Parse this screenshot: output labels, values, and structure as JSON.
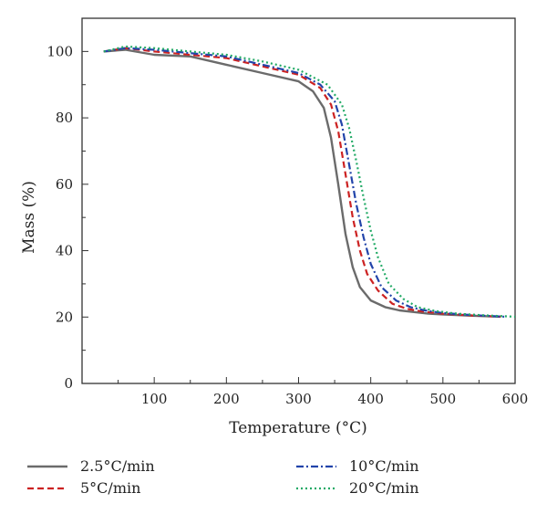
{
  "chart_data": {
    "type": "line",
    "title": "",
    "xlabel": "Temperature (°C)",
    "ylabel": "Mass (%)",
    "xlim": [
      0,
      600
    ],
    "ylim": [
      0,
      110
    ],
    "xticks": [
      "100",
      "200",
      "300",
      "400",
      "500",
      "600"
    ],
    "yticks": [
      "0",
      "20",
      "40",
      "60",
      "80",
      "100"
    ],
    "grid": false,
    "legend_position": "bottom",
    "series": [
      {
        "name": "2.5°C/min",
        "color": "#6b6b6b",
        "style": "solid",
        "x": [
          30,
          60,
          100,
          150,
          200,
          250,
          300,
          320,
          335,
          345,
          355,
          365,
          375,
          385,
          400,
          420,
          440,
          460,
          480,
          500,
          540,
          580
        ],
        "y": [
          100,
          100.5,
          99,
          98.5,
          96,
          93.5,
          91,
          88,
          83,
          74,
          60,
          45,
          35,
          29,
          25,
          23,
          22,
          21.5,
          21,
          20.8,
          20.4,
          20.1
        ]
      },
      {
        "name": "5°C/min",
        "color": "#cc2222",
        "style": "dashed",
        "x": [
          30,
          60,
          100,
          150,
          200,
          250,
          300,
          330,
          345,
          355,
          365,
          375,
          385,
          395,
          410,
          430,
          450,
          470,
          500,
          540,
          580
        ],
        "y": [
          100,
          101,
          100,
          99,
          98,
          95.5,
          93,
          89,
          84,
          76,
          63,
          50,
          40,
          33,
          28,
          24,
          22.5,
          21.7,
          21,
          20.5,
          20.1
        ]
      },
      {
        "name": "10°C/min",
        "color": "#2244aa",
        "style": "dashdot",
        "x": [
          30,
          60,
          100,
          150,
          200,
          250,
          300,
          330,
          350,
          360,
          370,
          380,
          390,
          400,
          415,
          435,
          455,
          475,
          500,
          540,
          585
        ],
        "y": [
          100,
          101,
          100.5,
          99.5,
          98.5,
          96,
          93.5,
          90,
          85,
          78,
          66,
          54,
          44,
          36,
          29,
          25,
          23,
          22,
          21.2,
          20.6,
          20.1
        ]
      },
      {
        "name": "20°C/min",
        "color": "#22aa66",
        "style": "dotted",
        "x": [
          30,
          60,
          100,
          150,
          200,
          250,
          300,
          340,
          360,
          370,
          380,
          390,
          400,
          410,
          425,
          445,
          465,
          490,
          520,
          560,
          600
        ],
        "y": [
          100,
          101.5,
          101,
          100,
          99,
          97,
          94.5,
          90,
          84,
          77,
          67,
          56,
          46,
          38,
          30,
          25.5,
          23,
          21.8,
          21,
          20.5,
          20.1
        ]
      }
    ]
  }
}
